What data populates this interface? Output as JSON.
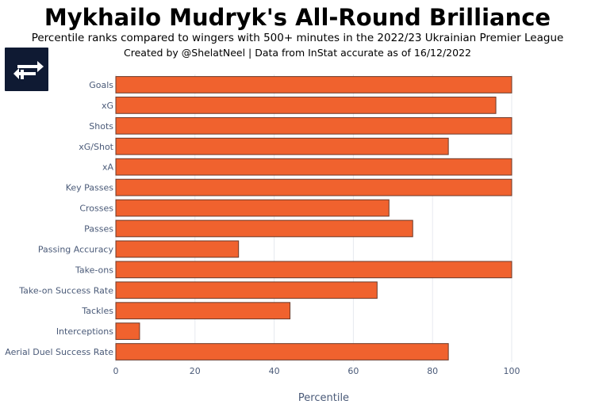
{
  "header": {
    "title": "Mykhailo Mudryk's All-Round Brilliance",
    "subtitle": "Percentile ranks compared to wingers with 500+ minutes in the 2022/23 Ukrainian Premier League",
    "credit": "Created by @ShelatNeel  | Data from InStat accurate as of 16/12/2022"
  },
  "logo": {
    "icon": "arrows-swap-icon",
    "background": "#0f1a33",
    "foreground": "#ffffff"
  },
  "chart_data": {
    "type": "bar",
    "orientation": "horizontal",
    "categories": [
      "Goals",
      "xG",
      "Shots",
      "xG/Shot",
      "xA",
      "Key Passes",
      "Crosses",
      "Passes",
      "Passing Accuracy",
      "Take-ons",
      "Take-on Success Rate",
      "Tackles",
      "Interceptions",
      "Aerial Duel Success Rate"
    ],
    "values": [
      100,
      96,
      100,
      84,
      100,
      100,
      69,
      75,
      31,
      100,
      66,
      44,
      6,
      84
    ],
    "xlabel": "Percentile",
    "ylabel": "",
    "xlim": [
      0,
      100
    ],
    "xticks": [
      0,
      20,
      40,
      60,
      80,
      100
    ],
    "grid": true,
    "colors": {
      "bar_fill": "#f0622e",
      "bar_stroke": "#6b3a2a",
      "grid": "#e6e9ef",
      "tick_text": "#4a5a78"
    }
  }
}
